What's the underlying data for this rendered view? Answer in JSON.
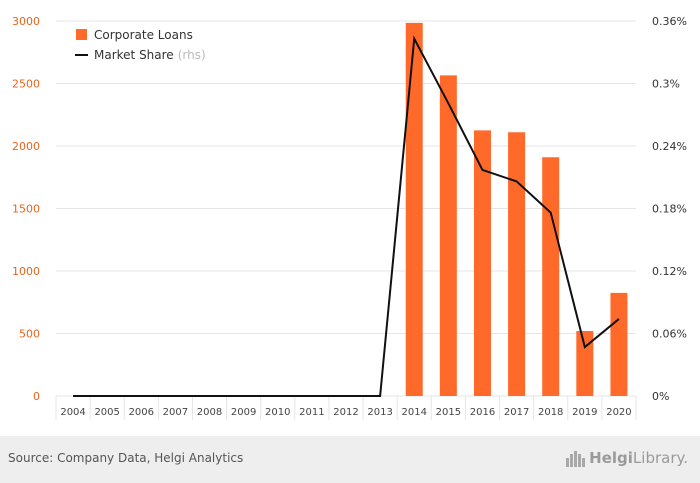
{
  "chart_data": {
    "type": "bar",
    "categories": [
      "2004",
      "2005",
      "2006",
      "2007",
      "2008",
      "2009",
      "2010",
      "2011",
      "2012",
      "2013",
      "2014",
      "2015",
      "2016",
      "2017",
      "2018",
      "2019",
      "2020"
    ],
    "series": [
      {
        "name": "Corporate Loans",
        "type": "bar",
        "axis": "left",
        "values": [
          0,
          0,
          0,
          0,
          0,
          0,
          0,
          0,
          0,
          0,
          2985,
          2565,
          2125,
          2110,
          1910,
          520,
          825
        ]
      },
      {
        "name": "Market Share",
        "name_note": "(rhs)",
        "type": "line",
        "axis": "right",
        "values": [
          0,
          0,
          0,
          0,
          0,
          0,
          0,
          0,
          0,
          0,
          0.343,
          0.281,
          0.217,
          0.206,
          0.176,
          0.047,
          0.074
        ]
      }
    ],
    "y_left": {
      "lim": [
        0,
        3000
      ],
      "ticks": [
        0,
        500,
        1000,
        1500,
        2000,
        2500,
        3000
      ]
    },
    "y_right": {
      "lim": [
        0,
        0.36
      ],
      "ticks": [
        0,
        0.06,
        0.12,
        0.18,
        0.24,
        0.3,
        0.36
      ],
      "tick_labels": [
        "0%",
        "0.06%",
        "0.12%",
        "0.18%",
        "0.24%",
        "0.3%",
        "0.36%"
      ]
    },
    "legend_position": "top-left",
    "grid": true,
    "colors": {
      "bar": "#ff6a2b",
      "line": "#111111",
      "left_ticks": "#e8641e",
      "grid": "#e6e6e6"
    }
  },
  "footer": {
    "source": "Source: Company Data, Helgi Analytics",
    "brand_prefix": "Helgi",
    "brand_suffix": "Library."
  }
}
